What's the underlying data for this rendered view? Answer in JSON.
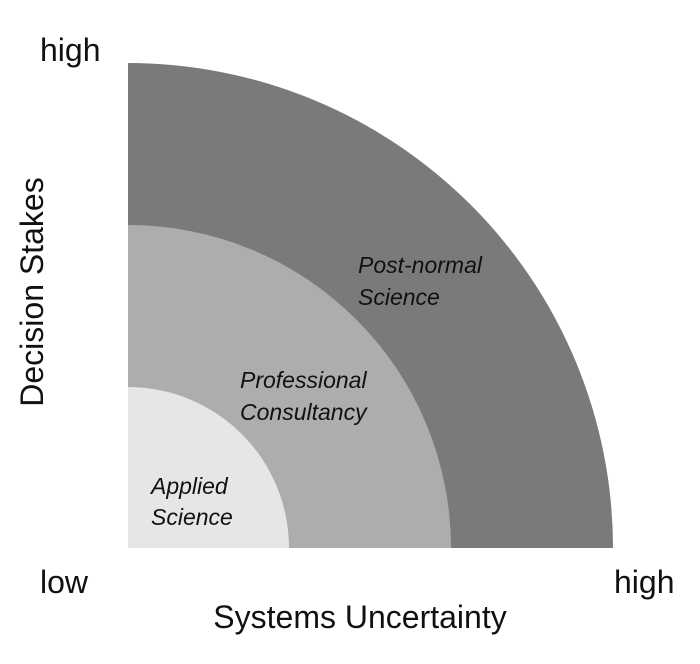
{
  "diagram": {
    "zones": [
      {
        "label_lines": [
          "Post-normal",
          "Science"
        ],
        "color": "#7a7a7a"
      },
      {
        "label_lines": [
          "Professional",
          "Consultancy"
        ],
        "color": "#adadad"
      },
      {
        "label_lines": [
          "Applied",
          "Science"
        ],
        "color": "#e6e6e6"
      }
    ],
    "y_axis": {
      "title": "Decision Stakes",
      "high_label": "high"
    },
    "x_axis": {
      "title": "Systems Uncertainty",
      "low_label": "low",
      "high_label": "high"
    }
  }
}
